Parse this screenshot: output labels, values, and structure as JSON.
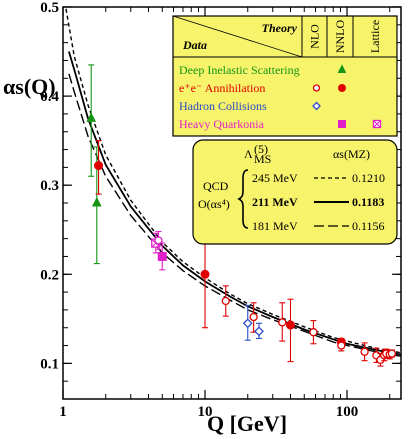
{
  "chart_data": {
    "type": "scatter",
    "title": "",
    "xlabel": "Q [GeV]",
    "ylabel": "αs(Q)",
    "x_scale": "log",
    "xlim": [
      1,
      240
    ],
    "ylim": [
      0.06,
      0.5
    ],
    "x_ticks": [
      {
        "value": 1,
        "label": "1"
      },
      {
        "value": 10,
        "label": "10"
      },
      {
        "value": 100,
        "label": "100"
      }
    ],
    "y_ticks": [
      {
        "value": 0.1,
        "label": "0.1"
      },
      {
        "value": 0.2,
        "label": "0.2"
      },
      {
        "value": 0.3,
        "label": "0.3"
      },
      {
        "value": 0.4,
        "label": "0.4"
      },
      {
        "value": 0.5,
        "label": "0.5"
      }
    ],
    "grid": false,
    "theory_curves": [
      {
        "lambda_label": "245 MeV",
        "alpha_label": "0.1210",
        "style": "dashed-short",
        "points": [
          [
            1.05,
            0.498
          ],
          [
            1.2,
            0.445
          ],
          [
            1.5,
            0.39
          ],
          [
            2,
            0.334
          ],
          [
            3,
            0.283
          ],
          [
            5,
            0.236
          ],
          [
            7,
            0.214
          ],
          [
            10,
            0.196
          ],
          [
            15,
            0.178
          ],
          [
            20,
            0.167
          ],
          [
            30,
            0.155
          ],
          [
            50,
            0.141
          ],
          [
            80,
            0.129
          ],
          [
            100,
            0.125
          ],
          [
            150,
            0.118
          ],
          [
            200,
            0.114
          ],
          [
            240,
            0.112
          ]
        ]
      },
      {
        "lambda_label": "211 MeV",
        "alpha_label": "0.1183",
        "style": "solid",
        "points": [
          [
            1.1,
            0.45
          ],
          [
            1.2,
            0.43
          ],
          [
            1.5,
            0.375
          ],
          [
            2,
            0.323
          ],
          [
            3,
            0.276
          ],
          [
            5,
            0.232
          ],
          [
            7,
            0.21
          ],
          [
            10,
            0.192
          ],
          [
            15,
            0.175
          ],
          [
            20,
            0.164
          ],
          [
            30,
            0.152
          ],
          [
            50,
            0.138
          ],
          [
            80,
            0.127
          ],
          [
            100,
            0.122
          ],
          [
            150,
            0.116
          ],
          [
            200,
            0.112
          ],
          [
            240,
            0.11
          ]
        ]
      },
      {
        "lambda_label": "181 MeV",
        "alpha_label": "0.1156",
        "style": "dashed-long",
        "points": [
          [
            1.1,
            0.425
          ],
          [
            1.2,
            0.405
          ],
          [
            1.5,
            0.355
          ],
          [
            2,
            0.31
          ],
          [
            3,
            0.266
          ],
          [
            5,
            0.224
          ],
          [
            7,
            0.204
          ],
          [
            10,
            0.187
          ],
          [
            15,
            0.171
          ],
          [
            20,
            0.16
          ],
          [
            30,
            0.149
          ],
          [
            50,
            0.136
          ],
          [
            80,
            0.124
          ],
          [
            100,
            0.12
          ],
          [
            150,
            0.114
          ],
          [
            200,
            0.11
          ],
          [
            240,
            0.108
          ]
        ]
      }
    ],
    "series": [
      {
        "name": "Deep Inelastic Scattering",
        "color": "#149614",
        "points": [
          {
            "x": 1.58,
            "y": 0.375,
            "err_low": 0.31,
            "err_high": 0.435,
            "marker": "triangle-filled"
          },
          {
            "x": 1.73,
            "y": 0.28,
            "err_low": 0.212,
            "err_high": 0.343,
            "marker": "triangle-filled"
          }
        ]
      },
      {
        "name": "e⁺e⁻ Annihilation",
        "color": "#e00000",
        "points": [
          {
            "x": 1.78,
            "y": 0.322,
            "err_low": 0.29,
            "err_high": 0.35,
            "marker": "circle-filled"
          },
          {
            "x": 10.0,
            "y": 0.2,
            "err_low": 0.14,
            "err_high": 0.26,
            "marker": "circle-filled"
          },
          {
            "x": 14.0,
            "y": 0.17,
            "err_low": 0.153,
            "err_high": 0.187,
            "marker": "circle-open"
          },
          {
            "x": 22.0,
            "y": 0.152,
            "err_low": 0.135,
            "err_high": 0.168,
            "marker": "circle-open"
          },
          {
            "x": 35.0,
            "y": 0.146,
            "err_low": 0.125,
            "err_high": 0.168,
            "marker": "circle-open"
          },
          {
            "x": 40.0,
            "y": 0.143,
            "err_low": 0.102,
            "err_high": 0.172,
            "marker": "circle-filled"
          },
          {
            "x": 58.0,
            "y": 0.135,
            "err_low": 0.122,
            "err_high": 0.148,
            "marker": "circle-open"
          },
          {
            "x": 91.2,
            "y": 0.124,
            "err_low": 0.12,
            "err_high": 0.128,
            "marker": "circle-filled"
          },
          {
            "x": 91.2,
            "y": 0.12,
            "err_low": 0.114,
            "err_high": 0.126,
            "marker": "circle-open"
          },
          {
            "x": 133.0,
            "y": 0.113,
            "err_low": 0.103,
            "err_high": 0.123,
            "marker": "circle-open"
          },
          {
            "x": 161.0,
            "y": 0.109,
            "err_low": 0.101,
            "err_high": 0.117,
            "marker": "circle-open"
          },
          {
            "x": 172.0,
            "y": 0.104,
            "err_low": 0.097,
            "err_high": 0.111,
            "marker": "circle-open"
          },
          {
            "x": 183.0,
            "y": 0.109,
            "err_low": 0.103,
            "err_high": 0.115,
            "marker": "circle-open"
          },
          {
            "x": 189.0,
            "y": 0.111,
            "err_low": 0.106,
            "err_high": 0.116,
            "marker": "circle-open"
          },
          {
            "x": 200.0,
            "y": 0.11,
            "err_low": 0.105,
            "err_high": 0.115,
            "marker": "circle-open"
          },
          {
            "x": 207.0,
            "y": 0.111,
            "err_low": 0.107,
            "err_high": 0.115,
            "marker": "circle-open"
          }
        ]
      },
      {
        "name": "Hadron Collisions",
        "color": "#2a4cc8",
        "points": [
          {
            "x": 20.0,
            "y": 0.145,
            "err_low": 0.126,
            "err_high": 0.165,
            "marker": "diamond-open"
          },
          {
            "x": 24.0,
            "y": 0.136,
            "err_low": 0.128,
            "err_high": 0.145,
            "marker": "diamond-open"
          }
        ]
      },
      {
        "name": "Heavy Quarkonia",
        "color": "#e020c8",
        "points": [
          {
            "x": 4.5,
            "y": 0.235,
            "err_low": 0.224,
            "err_high": 0.246,
            "marker": "square-crossed"
          },
          {
            "x": 4.7,
            "y": 0.238,
            "err_low": 0.228,
            "err_high": 0.248,
            "marker": "circle-open"
          },
          {
            "x": 5.0,
            "y": 0.22,
            "err_low": 0.205,
            "err_high": 0.235,
            "marker": "square-filled"
          }
        ]
      }
    ],
    "legend": {
      "placement": "top-right",
      "background": "#f7f36b",
      "header_theory": "Theory",
      "header_data": "Data",
      "col_nlo": "NLO",
      "col_nnlo": "NNLO",
      "col_lattice": "Lattice",
      "rows": [
        {
          "label": "Deep Inelastic Scattering",
          "color": "#149614",
          "nlo": "",
          "nnlo": "triangle-filled",
          "lattice": ""
        },
        {
          "label": "e⁺e⁻ Annihilation",
          "color": "#e00000",
          "nlo": "circle-open",
          "nnlo": "circle-filled",
          "lattice": ""
        },
        {
          "label": "Hadron Collisions",
          "color": "#2a4cc8",
          "nlo": "diamond-open",
          "nnlo": "",
          "lattice": ""
        },
        {
          "label": "Heavy Quarkonia",
          "color": "#e020c8",
          "nlo": "",
          "nnlo": "square-filled",
          "lattice": "square-crossed"
        }
      ]
    },
    "qcd_box": {
      "placement": "middle-right",
      "background": "#f7f36b",
      "header_lambda": "Λ",
      "header_lambda_sub": "MS",
      "header_lambda_sup": "(5)",
      "header_alpha": "αs(MZ)",
      "qcd_label": "QCD",
      "order_label": "O(αs⁴)",
      "rows": [
        {
          "lambda": "245 MeV",
          "alpha": "0.1210",
          "style": "dashed-short",
          "bold": false
        },
        {
          "lambda": "211 MeV",
          "alpha": "0.1183",
          "style": "solid",
          "bold": true
        },
        {
          "lambda": "181 MeV",
          "alpha": "0.1156",
          "style": "dashed-long",
          "bold": false
        }
      ]
    }
  }
}
